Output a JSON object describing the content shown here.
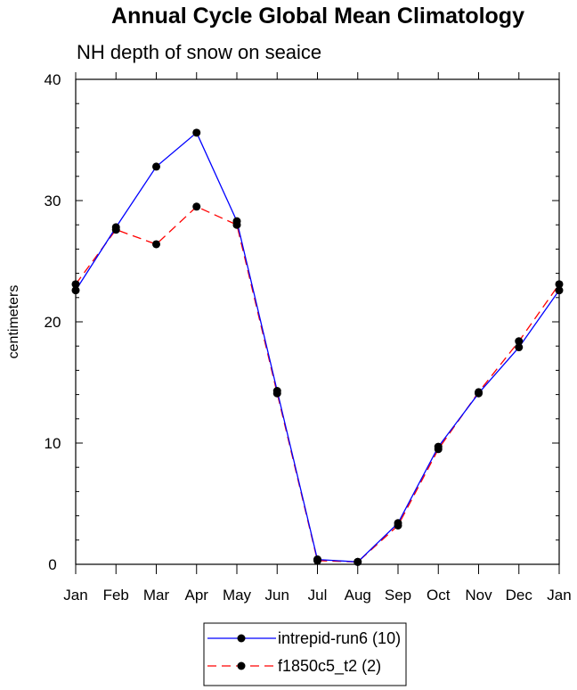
{
  "chart_data": {
    "type": "line",
    "title": "Annual Cycle Global Mean Climatology",
    "subtitle": "NH depth of snow on seaice",
    "xlabel": "",
    "ylabel": "centimeters",
    "categories": [
      "Jan",
      "Feb",
      "Mar",
      "Apr",
      "May",
      "Jun",
      "Jul",
      "Aug",
      "Sep",
      "Oct",
      "Nov",
      "Dec",
      "Jan"
    ],
    "ylim": [
      0,
      40
    ],
    "yticks": [
      0,
      10,
      20,
      30,
      40
    ],
    "grid": false,
    "legend_position": "bottom",
    "series": [
      {
        "name": "intrepid-run6 (10)",
        "color": "#0000ff",
        "dash": "solid",
        "values": [
          22.6,
          27.8,
          32.8,
          35.6,
          28.3,
          14.3,
          0.4,
          0.2,
          3.4,
          9.7,
          14.1,
          17.9,
          22.6
        ]
      },
      {
        "name": "f1850c5_t2 (2)",
        "color": "#ff0000",
        "dash": "dashed",
        "values": [
          23.1,
          27.6,
          26.4,
          29.5,
          28.0,
          14.1,
          0.3,
          0.2,
          3.2,
          9.5,
          14.2,
          18.4,
          23.1
        ]
      }
    ]
  }
}
